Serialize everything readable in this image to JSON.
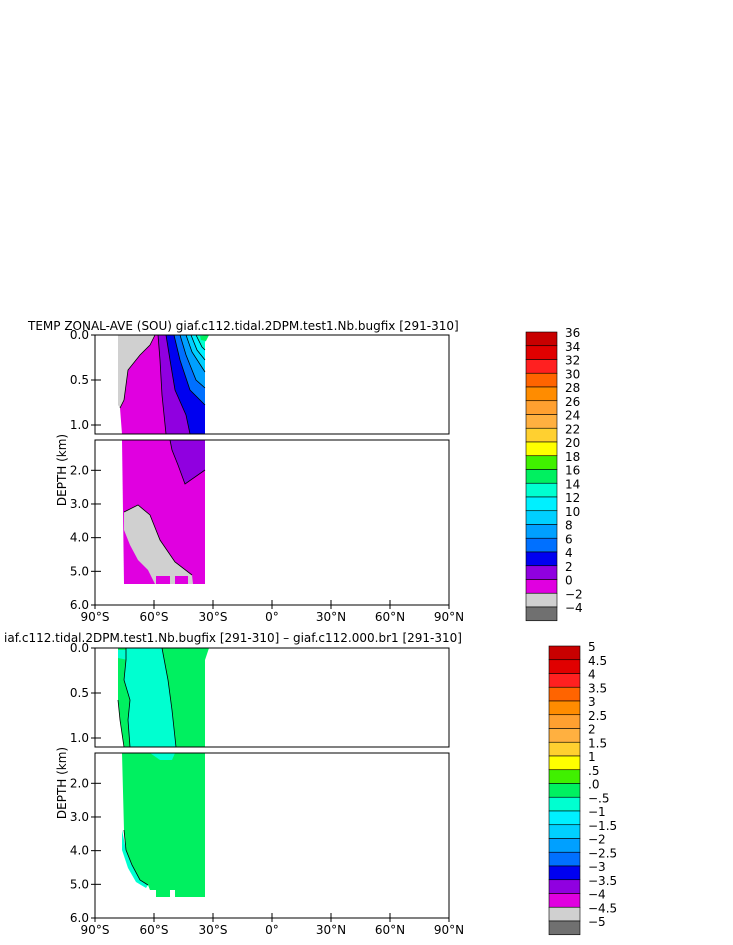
{
  "chart_data": [
    {
      "type": "heatmap",
      "title": "TEMP ZONAL-AVE (SOU) giaf.c112.tidal.2DPM.test1.Nb.bugfix [291-310]",
      "ylabel": "DEPTH (km)",
      "x_ticks": [
        "90°S",
        "60°S",
        "30°S",
        "0°",
        "30°N",
        "60°N",
        "90°N"
      ],
      "upper_y_ticks": [
        "0.0",
        "0.5",
        "1.0"
      ],
      "lower_y_ticks": [
        "2.0",
        "3.0",
        "4.0",
        "5.0",
        "6.0"
      ],
      "xlim": [
        -90,
        90
      ],
      "ylim": [
        6.0,
        0.0
      ],
      "colorbar": {
        "levels": [
          36,
          34,
          32,
          30,
          28,
          26,
          24,
          22,
          20,
          18,
          16,
          14,
          12,
          10,
          8,
          6,
          4,
          2,
          0,
          -2,
          -4
        ],
        "labels": [
          "36",
          "34",
          "32",
          "30",
          "28",
          "26",
          "24",
          "22",
          "20",
          "18",
          "16",
          "14",
          "12",
          "10",
          "8",
          "6",
          "4",
          "2",
          "0",
          "−2",
          "−4"
        ],
        "colors": [
          "#c80000",
          "#e00000",
          "#ff2020",
          "#ff6400",
          "#ff8c00",
          "#ffa030",
          "#ffb040",
          "#ffd030",
          "#ffff00",
          "#40f000",
          "#00f060",
          "#00ffd0",
          "#00f0ff",
          "#00d0ff",
          "#00a0ff",
          "#0070ff",
          "#0000f0",
          "#9000e0",
          "#e000e0",
          "#d0d0d0",
          "#707070"
        ]
      }
    },
    {
      "type": "heatmap",
      "title": "iaf.c112.tidal.2DPM.test1.Nb.bugfix [291-310] – giaf.c112.000.br1 [291-310]",
      "ylabel": "DEPTH (km)",
      "x_ticks": [
        "90°S",
        "60°S",
        "30°S",
        "0°",
        "30°N",
        "60°N",
        "90°N"
      ],
      "upper_y_ticks": [
        "0.0",
        "0.5",
        "1.0"
      ],
      "lower_y_ticks": [
        "2.0",
        "3.0",
        "4.0",
        "5.0",
        "6.0"
      ],
      "xlim": [
        -90,
        90
      ],
      "ylim": [
        6.0,
        0.0
      ],
      "colorbar": {
        "levels": [
          5,
          4.5,
          4,
          3.5,
          3,
          2.5,
          2,
          1.5,
          1,
          0.5,
          0,
          -0.5,
          -1,
          -1.5,
          -2,
          -2.5,
          -3,
          -3.5,
          -4,
          -4.5,
          -5
        ],
        "labels": [
          "5",
          "4.5",
          "4",
          "3.5",
          "3",
          "2.5",
          "2",
          "1.5",
          "1",
          ".5",
          ".0",
          "−.5",
          "−1",
          "−1.5",
          "−2",
          "−2.5",
          "−3",
          "−3.5",
          "−4",
          "−4.5",
          "−5"
        ],
        "colors": [
          "#c80000",
          "#e00000",
          "#ff2020",
          "#ff6400",
          "#ff8c00",
          "#ffa030",
          "#ffb040",
          "#ffd030",
          "#ffff00",
          "#40f000",
          "#00f060",
          "#00ffd0",
          "#00f0ff",
          "#00d0ff",
          "#00a0ff",
          "#0070ff",
          "#0000f0",
          "#9000e0",
          "#e000e0",
          "#d0d0d0",
          "#707070"
        ]
      }
    }
  ]
}
